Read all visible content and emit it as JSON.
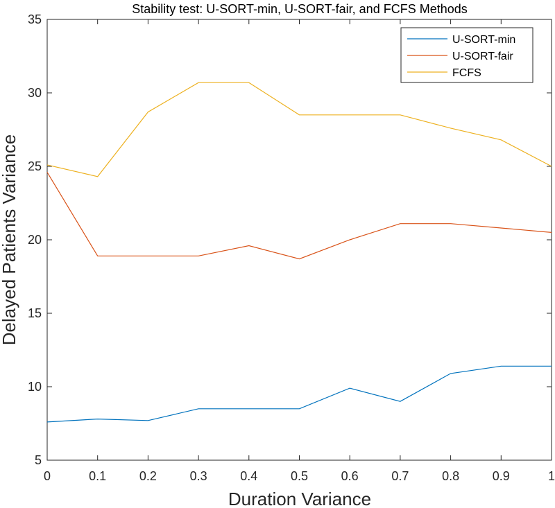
{
  "chart_data": {
    "type": "line",
    "title": "Stability test: U-SORT-min, U-SORT-fair, and FCFS Methods",
    "xlabel": "Duration Variance",
    "ylabel": "Delayed Patients Variance",
    "xlim": [
      0,
      1
    ],
    "ylim": [
      5,
      35
    ],
    "xticks": [
      "0",
      "0.1",
      "0.2",
      "0.3",
      "0.4",
      "0.5",
      "0.6",
      "0.7",
      "0.8",
      "0.9",
      "1"
    ],
    "yticks": [
      "5",
      "10",
      "15",
      "20",
      "25",
      "30",
      "35"
    ],
    "grid": false,
    "legend_position": "top-right",
    "x": [
      0,
      0.1,
      0.2,
      0.3,
      0.4,
      0.5,
      0.6,
      0.7,
      0.8,
      0.9,
      1
    ],
    "series": [
      {
        "name": "U-SORT-min",
        "color": "#0072BD",
        "values": [
          7.6,
          7.8,
          7.7,
          8.5,
          8.5,
          8.5,
          9.9,
          9.0,
          10.9,
          11.4,
          11.4
        ]
      },
      {
        "name": "U-SORT-fair",
        "color": "#D95319",
        "values": [
          24.6,
          18.9,
          18.9,
          18.9,
          19.6,
          18.7,
          20.0,
          21.1,
          21.1,
          20.8,
          20.5
        ]
      },
      {
        "name": "FCFS",
        "color": "#EDB120",
        "values": [
          25.1,
          24.3,
          28.7,
          30.7,
          30.7,
          28.5,
          28.5,
          28.5,
          27.6,
          26.8,
          25.0
        ]
      }
    ]
  }
}
